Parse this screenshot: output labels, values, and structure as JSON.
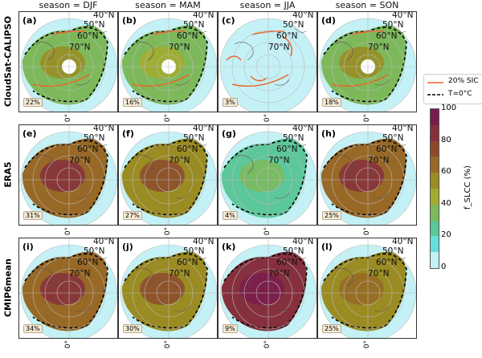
{
  "columns": [
    "season = DJF",
    "season = MAM",
    "season = JJA",
    "season = SON"
  ],
  "rows": [
    "CloudSat-CALIPSO",
    "ERA5",
    "CMIP6mean"
  ],
  "panels": [
    {
      "letter": "(a)",
      "percent": "22%"
    },
    {
      "letter": "(b)",
      "percent": "16%"
    },
    {
      "letter": "(c)",
      "percent": "3%"
    },
    {
      "letter": "(d)",
      "percent": "18%"
    },
    {
      "letter": "(e)",
      "percent": "31%"
    },
    {
      "letter": "(f)",
      "percent": "27%"
    },
    {
      "letter": "(g)",
      "percent": "4%"
    },
    {
      "letter": "(h)",
      "percent": "25%"
    },
    {
      "letter": "(i)",
      "percent": "34%"
    },
    {
      "letter": "(j)",
      "percent": "30%"
    },
    {
      "letter": "(k)",
      "percent": "9%"
    },
    {
      "letter": "(l)",
      "percent": "25%"
    }
  ],
  "lat_labels": [
    "40°N",
    "50°N",
    "60°N",
    "70°N"
  ],
  "lon_label": "0°",
  "legend": {
    "sic": "20% SIC",
    "temp": "T=0$^\\circ$C",
    "temp_display": "T=0°C",
    "sic_color": "#f0642a"
  },
  "colorbar": {
    "label": "f_SLCC (%)",
    "ticks": [
      "0",
      "20",
      "40",
      "60",
      "80",
      "100"
    ],
    "colors": [
      "#c4f1f6",
      "#66ddd9",
      "#5cc79a",
      "#7db95a",
      "#a3aa2e",
      "#9a8b22",
      "#986826",
      "#8c4a2b",
      "#86303d",
      "#7a1c4c"
    ]
  }
}
